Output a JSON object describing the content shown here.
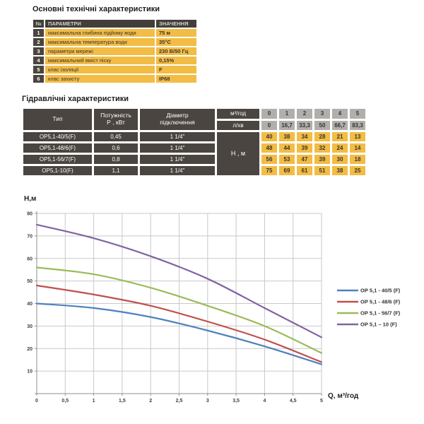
{
  "theme": {
    "yellow": "#f2bc45",
    "dark_cell": "#4a4540",
    "gray_cell": "#b1afac",
    "header_dark": "#423e3a"
  },
  "tech_section": {
    "title": "Основні технічні характеристики",
    "header": {
      "num": "№",
      "param": "ПАРАМЕТРИ",
      "value": "ЗНАЧЕННЯ"
    },
    "rows": [
      {
        "num": "1",
        "param": "максимальна глибина підйому води",
        "value": "75 м"
      },
      {
        "num": "2",
        "param": "максимальна температура води",
        "value": "35°С"
      },
      {
        "num": "3",
        "param": "параметри мережі",
        "value": "230 В/50 Гц"
      },
      {
        "num": "4",
        "param": "максимальний вміст піску",
        "value": "0,15%"
      },
      {
        "num": "5",
        "param": "клас ізоляції",
        "value": "F"
      },
      {
        "num": "6",
        "param": "клас захисту",
        "value": "IP68"
      }
    ]
  },
  "hydraulic_section": {
    "title": "Гідравлічні характеристики",
    "header": {
      "type": "Тип",
      "power_l1": "Потужність",
      "power_l2": "Р , кВт",
      "diam_l1": "Діаметр",
      "diam_l2": "підключення",
      "flow_m3": "м³/год",
      "flow_l": "л/хв",
      "head": "Н , м"
    },
    "flow_m3_values": [
      "0",
      "1",
      "2",
      "3",
      "4",
      "5"
    ],
    "flow_l_values": [
      "0",
      "16,7",
      "33,3",
      "50",
      "66,7",
      "83,3"
    ],
    "rows": [
      {
        "type": "ОР5,1-40/5(F)",
        "power": "0,45",
        "diameter": "1 1/4\"",
        "heads": [
          "40",
          "38",
          "34",
          "28",
          "21",
          "13"
        ]
      },
      {
        "type": "ОР5,1-48/6(F)",
        "power": "0,6",
        "diameter": "1 1/4\"",
        "heads": [
          "48",
          "44",
          "39",
          "32",
          "24",
          "14"
        ]
      },
      {
        "type": "ОР5,1-56/7(F)",
        "power": "0,8",
        "diameter": "1 1/4\"",
        "heads": [
          "56",
          "53",
          "47",
          "39",
          "30",
          "18"
        ]
      },
      {
        "type": "ОР5,1-10(F)",
        "power": "1,1",
        "diameter": "1 1/4\"",
        "heads": [
          "75",
          "69",
          "61",
          "51",
          "38",
          "25"
        ]
      }
    ]
  },
  "chart_data": {
    "type": "line",
    "title": "",
    "ylabel": "Н,м",
    "xlabel": "Q,  м³/год",
    "x": [
      0,
      1,
      2,
      3,
      4,
      5
    ],
    "series": [
      {
        "name": "ОР 5,1 - 40/5 (F)",
        "color": "#4f81bd",
        "values": [
          40,
          38,
          34,
          28,
          21,
          13
        ]
      },
      {
        "name": "ОР 5,1 - 48/6 (F)",
        "color": "#c0504d",
        "values": [
          48,
          44,
          39,
          32,
          24,
          14
        ]
      },
      {
        "name": "ОР 5,1 - 56/7 (F)",
        "color": "#9bbb59",
        "values": [
          56,
          53,
          47,
          39,
          30,
          18
        ]
      },
      {
        "name": "ОР 5,1 – 10 (F)",
        "color": "#8064a2",
        "values": [
          75,
          69,
          61,
          51,
          38,
          25
        ]
      }
    ],
    "xlim": [
      0,
      5
    ],
    "ylim": [
      0,
      80
    ],
    "x_ticks": [
      0,
      0.5,
      1,
      1.5,
      2,
      2.5,
      3,
      3.5,
      4,
      4.5,
      5
    ],
    "y_ticks": [
      0,
      10,
      20,
      30,
      40,
      50,
      60,
      70,
      80
    ],
    "grid": true,
    "legend_position": "right",
    "colors": {
      "grid": "#c9c9c9",
      "axis": "#8f8f8f",
      "tick_label": "#3f3f3f",
      "label": "#1d1d1d",
      "legend_text": "#333333"
    }
  }
}
